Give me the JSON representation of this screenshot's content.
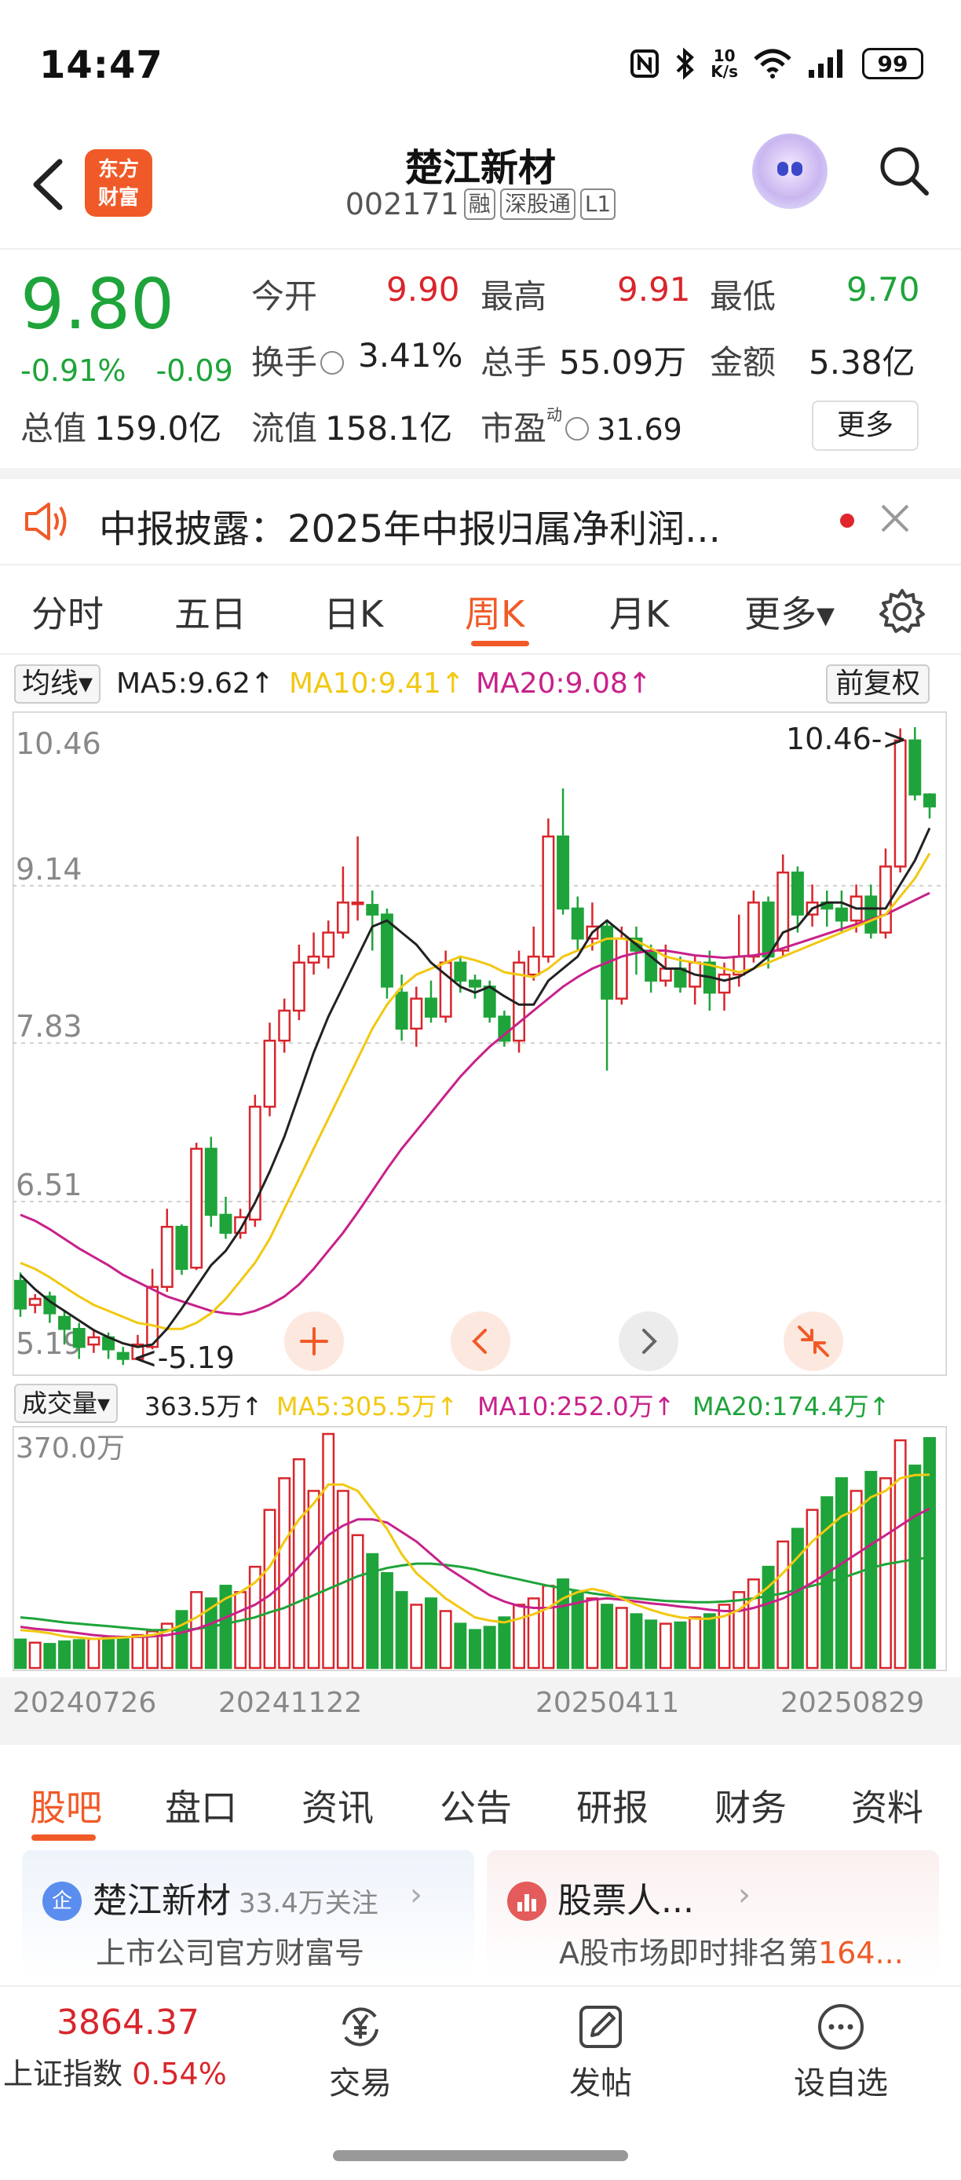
{
  "status_bar": {
    "time": "14:47",
    "net_speed_value": "10",
    "net_speed_unit": "K/s",
    "battery": "99"
  },
  "header": {
    "logo_line1": "东方",
    "logo_line2": "财富",
    "title": "楚江新材",
    "code": "002171",
    "tags": [
      "融",
      "深股通",
      "L1"
    ]
  },
  "quote": {
    "price": "9.80",
    "change_pct": "-0.91%",
    "change": "-0.09",
    "open_label": "今开",
    "open": "9.90",
    "high_label": "最高",
    "high": "9.91",
    "low_label": "最低",
    "low": "9.70",
    "turnover_label": "换手",
    "turnover": "3.41%",
    "volume_label": "总手",
    "volume": "55.09万",
    "amount_label": "金额",
    "amount": "5.38亿",
    "mcap_label": "总值",
    "mcap": "159.0亿",
    "float_label": "流值",
    "float_mcap": "158.1亿",
    "pe_label": "市盈",
    "pe_sup": "动",
    "pe": "31.69",
    "more_label": "更多"
  },
  "notice": {
    "text": "中报披露：2025年中报归属净利润..."
  },
  "chart_tabs": {
    "items": [
      "分时",
      "五日",
      "日K",
      "周K",
      "月K",
      "更多▾"
    ],
    "active": "周K"
  },
  "ma_bar": {
    "select": "均线▾",
    "ma5": "MA5:9.62↑",
    "ma10": "MA10:9.41↑",
    "ma20": "MA20:9.08↑",
    "adjust": "前复权"
  },
  "volume_bar": {
    "select": "成交量▾",
    "current": "363.5万↑",
    "ma5": "MA5:305.5万↑",
    "ma10": "MA10:252.0万↑",
    "ma20": "MA20:174.4万↑"
  },
  "colors": {
    "up": "#d8262c",
    "down": "#1ea43a",
    "accent": "#f05a28",
    "ma5": "#222222",
    "ma10": "#f2c811",
    "ma20": "#c8218a"
  },
  "chart_data": {
    "type": "candlestick",
    "y_ticks": [
      "10.46",
      "9.14",
      "7.83",
      "6.51",
      "5.19"
    ],
    "ylim": [
      5.19,
      10.46
    ],
    "max_label": "10.46->",
    "min_label": "<-5.19",
    "candles": [
      [
        5.85,
        5.62,
        5.92,
        5.55
      ],
      [
        5.65,
        5.7,
        5.74,
        5.58
      ],
      [
        5.72,
        5.58,
        5.76,
        5.5
      ],
      [
        5.55,
        5.45,
        5.6,
        5.32
      ],
      [
        5.45,
        5.3,
        5.5,
        5.2
      ],
      [
        5.32,
        5.38,
        5.45,
        5.25
      ],
      [
        5.38,
        5.28,
        5.42,
        5.2
      ],
      [
        5.25,
        5.2,
        5.3,
        5.15
      ],
      [
        5.2,
        5.32,
        5.4,
        5.19
      ],
      [
        5.3,
        5.8,
        5.95,
        5.28
      ],
      [
        5.8,
        6.3,
        6.45,
        5.76
      ],
      [
        6.3,
        5.95,
        6.32,
        5.9
      ],
      [
        5.96,
        6.95,
        7.0,
        5.94
      ],
      [
        6.95,
        6.4,
        7.05,
        6.3
      ],
      [
        6.4,
        6.25,
        6.55,
        6.2
      ],
      [
        6.25,
        6.38,
        6.45,
        6.2
      ],
      [
        6.36,
        7.3,
        7.4,
        6.3
      ],
      [
        7.3,
        7.85,
        8.0,
        7.22
      ],
      [
        7.85,
        8.1,
        8.2,
        7.75
      ],
      [
        8.1,
        8.5,
        8.65,
        8.02
      ],
      [
        8.5,
        8.55,
        8.75,
        8.4
      ],
      [
        8.55,
        8.75,
        8.85,
        8.45
      ],
      [
        8.75,
        9.0,
        9.3,
        8.7
      ],
      [
        9.0,
        9.0,
        9.55,
        8.85
      ],
      [
        8.98,
        8.9,
        9.1,
        8.6
      ],
      [
        8.9,
        8.3,
        8.95,
        8.2
      ],
      [
        8.25,
        7.95,
        8.4,
        7.85
      ],
      [
        7.95,
        8.2,
        8.3,
        7.8
      ],
      [
        8.2,
        8.05,
        8.35,
        8.0
      ],
      [
        8.05,
        8.5,
        8.6,
        8.0
      ],
      [
        8.5,
        8.35,
        8.55,
        8.25
      ],
      [
        8.35,
        8.3,
        8.4,
        8.2
      ],
      [
        8.3,
        8.05,
        8.35,
        8.0
      ],
      [
        8.05,
        7.85,
        8.1,
        7.8
      ],
      [
        7.85,
        8.5,
        8.6,
        7.75
      ],
      [
        8.4,
        8.55,
        8.8,
        8.35
      ],
      [
        8.55,
        9.55,
        9.7,
        8.5
      ],
      [
        9.55,
        8.95,
        9.95,
        8.9
      ],
      [
        8.95,
        8.7,
        9.05,
        8.6
      ],
      [
        8.7,
        8.8,
        9.0,
        8.6
      ],
      [
        8.8,
        8.2,
        8.85,
        7.6
      ],
      [
        8.2,
        8.7,
        8.8,
        8.15
      ],
      [
        8.7,
        8.6,
        8.8,
        8.4
      ],
      [
        8.6,
        8.35,
        8.65,
        8.25
      ],
      [
        8.35,
        8.45,
        8.65,
        8.3
      ],
      [
        8.45,
        8.3,
        8.55,
        8.25
      ],
      [
        8.3,
        8.5,
        8.55,
        8.15
      ],
      [
        8.5,
        8.25,
        8.6,
        8.1
      ],
      [
        8.25,
        8.4,
        8.5,
        8.1
      ],
      [
        8.4,
        8.55,
        8.9,
        8.3
      ],
      [
        8.55,
        9.0,
        9.1,
        8.5
      ],
      [
        9.0,
        8.55,
        9.05,
        8.45
      ],
      [
        8.6,
        9.25,
        9.4,
        8.55
      ],
      [
        9.25,
        8.9,
        9.3,
        8.75
      ],
      [
        8.9,
        9.0,
        9.15,
        8.8
      ],
      [
        9.0,
        8.95,
        9.1,
        8.8
      ],
      [
        8.95,
        8.85,
        9.1,
        8.75
      ],
      [
        8.85,
        9.05,
        9.15,
        8.75
      ],
      [
        9.05,
        8.75,
        9.15,
        8.7
      ],
      [
        8.75,
        9.3,
        9.45,
        8.7
      ],
      [
        9.3,
        10.35,
        10.45,
        9.25
      ],
      [
        10.35,
        9.9,
        10.46,
        9.85
      ],
      [
        9.9,
        9.8,
        9.91,
        9.7
      ]
    ],
    "ma5": [
      5.9,
      5.78,
      5.68,
      5.6,
      5.52,
      5.44,
      5.38,
      5.33,
      5.3,
      5.32,
      5.45,
      5.62,
      5.8,
      5.98,
      6.1,
      6.28,
      6.5,
      6.76,
      7.05,
      7.4,
      7.75,
      8.05,
      8.3,
      8.55,
      8.8,
      8.85,
      8.75,
      8.65,
      8.5,
      8.4,
      8.3,
      8.25,
      8.3,
      8.22,
      8.15,
      8.15,
      8.35,
      8.45,
      8.55,
      8.75,
      8.85,
      8.75,
      8.65,
      8.55,
      8.45,
      8.45,
      8.4,
      8.38,
      8.35,
      8.38,
      8.45,
      8.55,
      8.75,
      8.8,
      8.95,
      9.0,
      9.0,
      8.95,
      8.95,
      8.95,
      9.15,
      9.35,
      9.62
    ],
    "ma10": [
      6.0,
      5.95,
      5.88,
      5.8,
      5.72,
      5.65,
      5.6,
      5.55,
      5.5,
      5.48,
      5.45,
      5.45,
      5.5,
      5.58,
      5.7,
      5.85,
      6.0,
      6.2,
      6.45,
      6.7,
      6.95,
      7.2,
      7.45,
      7.7,
      7.95,
      8.15,
      8.3,
      8.4,
      8.45,
      8.5,
      8.55,
      8.52,
      8.48,
      8.42,
      8.4,
      8.38,
      8.45,
      8.55,
      8.6,
      8.65,
      8.7,
      8.7,
      8.68,
      8.62,
      8.55,
      8.52,
      8.5,
      8.48,
      8.45,
      8.42,
      8.45,
      8.5,
      8.55,
      8.6,
      8.65,
      8.7,
      8.75,
      8.8,
      8.85,
      8.9,
      9.05,
      9.2,
      9.41
    ],
    "ma20": [
      6.4,
      6.35,
      6.28,
      6.2,
      6.12,
      6.05,
      5.98,
      5.9,
      5.84,
      5.78,
      5.72,
      5.68,
      5.64,
      5.6,
      5.58,
      5.57,
      5.6,
      5.65,
      5.72,
      5.82,
      5.95,
      6.1,
      6.25,
      6.42,
      6.6,
      6.78,
      6.95,
      7.1,
      7.25,
      7.4,
      7.55,
      7.68,
      7.8,
      7.9,
      8.0,
      8.1,
      8.2,
      8.3,
      8.38,
      8.45,
      8.5,
      8.55,
      8.58,
      8.6,
      8.6,
      8.58,
      8.56,
      8.55,
      8.54,
      8.55,
      8.56,
      8.58,
      8.62,
      8.66,
      8.7,
      8.74,
      8.78,
      8.82,
      8.86,
      8.9,
      8.96,
      9.02,
      9.08
    ],
    "volume_ylim": [
      0,
      370.0
    ],
    "volume_y_tick": "370.0万",
    "volume": [
      45,
      40,
      38,
      42,
      44,
      46,
      50,
      48,
      52,
      58,
      70,
      90,
      120,
      110,
      130,
      120,
      160,
      250,
      300,
      330,
      280,
      370,
      280,
      210,
      180,
      150,
      120,
      100,
      110,
      90,
      70,
      60,
      65,
      80,
      100,
      110,
      130,
      140,
      120,
      110,
      100,
      95,
      85,
      75,
      70,
      72,
      80,
      85,
      100,
      120,
      140,
      160,
      200,
      220,
      250,
      270,
      300,
      280,
      310,
      300,
      360,
      320,
      363.5
    ],
    "vol_ma5": [
      60,
      58,
      55,
      50,
      48,
      46,
      47,
      48,
      50,
      52,
      58,
      68,
      80,
      95,
      110,
      120,
      135,
      160,
      200,
      235,
      260,
      290,
      290,
      280,
      250,
      220,
      180,
      150,
      130,
      110,
      95,
      80,
      75,
      72,
      78,
      85,
      95,
      110,
      120,
      125,
      120,
      110,
      100,
      92,
      85,
      80,
      78,
      78,
      82,
      92,
      110,
      128,
      150,
      175,
      200,
      220,
      240,
      250,
      270,
      280,
      300,
      305,
      305.5
    ],
    "vol_ma10": [
      65,
      62,
      60,
      58,
      55,
      52,
      50,
      49,
      49,
      50,
      52,
      56,
      62,
      70,
      80,
      90,
      100,
      115,
      135,
      160,
      185,
      210,
      225,
      235,
      235,
      230,
      215,
      200,
      180,
      160,
      145,
      130,
      115,
      105,
      98,
      95,
      95,
      98,
      103,
      108,
      110,
      108,
      105,
      102,
      100,
      97,
      95,
      92,
      90,
      90,
      95,
      102,
      110,
      122,
      135,
      150,
      165,
      180,
      195,
      210,
      225,
      240,
      252.0
    ],
    "vol_ma20": [
      80,
      78,
      75,
      72,
      70,
      68,
      66,
      64,
      62,
      60,
      60,
      60,
      62,
      65,
      70,
      75,
      80,
      88,
      95,
      105,
      115,
      125,
      135,
      145,
      152,
      158,
      162,
      165,
      165,
      163,
      160,
      156,
      150,
      145,
      140,
      135,
      130,
      126,
      122,
      118,
      115,
      112,
      110,
      108,
      106,
      105,
      104,
      104,
      105,
      107,
      110,
      114,
      118,
      124,
      130,
      136,
      142,
      150,
      158,
      164,
      168,
      172,
      174.4
    ],
    "dates": [
      "20240726",
      "20241122",
      "20250411",
      "20250829"
    ]
  },
  "bottom_tabs": {
    "items": [
      "股吧",
      "盘口",
      "资讯",
      "公告",
      "研报",
      "财务",
      "资料"
    ],
    "active": "股吧"
  },
  "cards": {
    "card1": {
      "icon_letter": "企",
      "title": "楚江新材",
      "follow": "33.4万关注",
      "sub": "上市公司官方财富号"
    },
    "card2": {
      "title": "股票人...",
      "sub_prefix": "A股市场即时排名第",
      "sub_value": "164..."
    }
  },
  "bottom_nav": {
    "index_value": "3864.37",
    "index_name": "上证指数",
    "index_change": "0.54%",
    "trade_label": "交易",
    "post_label": "发帖",
    "watch_label": "设自选"
  }
}
